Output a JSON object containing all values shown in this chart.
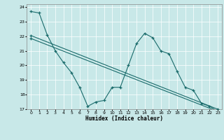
{
  "title": "",
  "xlabel": "Humidex (Indice chaleur)",
  "bg_color": "#c8e8e8",
  "line_color": "#1a6b6b",
  "grid_color": "#ffffff",
  "xlim": [
    -0.5,
    23.5
  ],
  "ylim": [
    17,
    24.2
  ],
  "yticks": [
    17,
    18,
    19,
    20,
    21,
    22,
    23,
    24
  ],
  "xticks": [
    0,
    1,
    2,
    3,
    4,
    5,
    6,
    7,
    8,
    9,
    10,
    11,
    12,
    13,
    14,
    15,
    16,
    17,
    18,
    19,
    20,
    21,
    22,
    23
  ],
  "series": [
    {
      "x": [
        0,
        1,
        2,
        3,
        4,
        5,
        6,
        7,
        8,
        9,
        10,
        11,
        12,
        13,
        14,
        15,
        16,
        17,
        18,
        19,
        20,
        21,
        22,
        23
      ],
      "y": [
        23.7,
        23.6,
        22.1,
        21.0,
        20.2,
        19.5,
        18.5,
        17.2,
        17.5,
        17.6,
        18.5,
        18.5,
        20.0,
        21.5,
        22.2,
        21.9,
        21.0,
        20.8,
        19.6,
        18.5,
        18.3,
        17.4,
        17.2,
        16.85
      ]
    },
    {
      "x": [
        0,
        23
      ],
      "y": [
        22.05,
        17.0
      ]
    },
    {
      "x": [
        0,
        23
      ],
      "y": [
        21.85,
        16.85
      ]
    }
  ]
}
